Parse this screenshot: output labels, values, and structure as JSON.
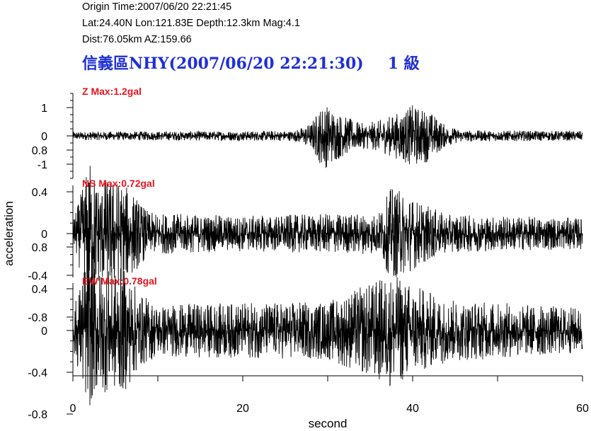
{
  "header": {
    "origin_time": "Origin Time:2007/06/20 22:21:45",
    "location": "Lat:24.40N  Lon:121.83E  Depth:12.3km  Mag:4.1",
    "distance": "Dist:76.05km  AZ:159.66",
    "station_title": "信義區NHY(2007/06/20 22:21:30)",
    "intensity": "1 級"
  },
  "chart_data": {
    "type": "line",
    "xlabel": "second",
    "ylabel": "acceleration",
    "xlim": [
      0,
      60
    ],
    "x_ticks": [
      "0",
      "20",
      "40",
      "60"
    ],
    "colors": {
      "trace": "#000000",
      "max_label": "#e8141e",
      "title": "#1f2fd6"
    },
    "panels": [
      {
        "name": "Z",
        "max_label": "Z Max:1.2gal",
        "peak": 1.2,
        "ylim": [
          -1.5,
          1.5
        ],
        "y_ticks": [
          "1",
          "0",
          "-1"
        ],
        "y_tick_values": [
          1,
          0,
          -1
        ],
        "envelope": [
          [
            0,
            0.15
          ],
          [
            26,
            0.18
          ],
          [
            28,
            0.45
          ],
          [
            29.5,
            1.2
          ],
          [
            32,
            0.7
          ],
          [
            34,
            0.45
          ],
          [
            36,
            0.55
          ],
          [
            38,
            0.8
          ],
          [
            40,
            1.1
          ],
          [
            42,
            0.9
          ],
          [
            44,
            0.35
          ],
          [
            46,
            0.2
          ],
          [
            60,
            0.17
          ]
        ]
      },
      {
        "name": "NS",
        "max_label": "NS Max:0.72gal",
        "peak": 0.72,
        "ylim": [
          -0.9,
          0.9
        ],
        "y_ticks": [
          "0.8",
          "0.4",
          "0",
          "-0.4",
          "-0.8"
        ],
        "y_tick_values": [
          0.8,
          0.4,
          0,
          -0.4,
          -0.8
        ],
        "envelope": [
          [
            0,
            0.12
          ],
          [
            1,
            0.4
          ],
          [
            2,
            0.72
          ],
          [
            3,
            0.5
          ],
          [
            5,
            0.55
          ],
          [
            7,
            0.4
          ],
          [
            9,
            0.2
          ],
          [
            20,
            0.17
          ],
          [
            36,
            0.2
          ],
          [
            37.5,
            0.45
          ],
          [
            39,
            0.4
          ],
          [
            41,
            0.3
          ],
          [
            44,
            0.18
          ],
          [
            60,
            0.15
          ]
        ]
      },
      {
        "name": "EW",
        "max_label": "EW Max:0.78gal",
        "peak": 0.78,
        "ylim": [
          -0.9,
          0.9
        ],
        "y_ticks": [
          "0.8",
          "0.4",
          "0",
          "-0.4",
          "-0.8"
        ],
        "y_tick_values": [
          0.8,
          0.4,
          0,
          -0.4,
          -0.8
        ],
        "envelope": [
          [
            0,
            0.2
          ],
          [
            1,
            0.5
          ],
          [
            1.7,
            0.78
          ],
          [
            3,
            0.6
          ],
          [
            6,
            0.6
          ],
          [
            8,
            0.35
          ],
          [
            10,
            0.25
          ],
          [
            30,
            0.28
          ],
          [
            37.5,
            0.55
          ],
          [
            40,
            0.45
          ],
          [
            44,
            0.3
          ],
          [
            60,
            0.22
          ]
        ]
      }
    ]
  }
}
